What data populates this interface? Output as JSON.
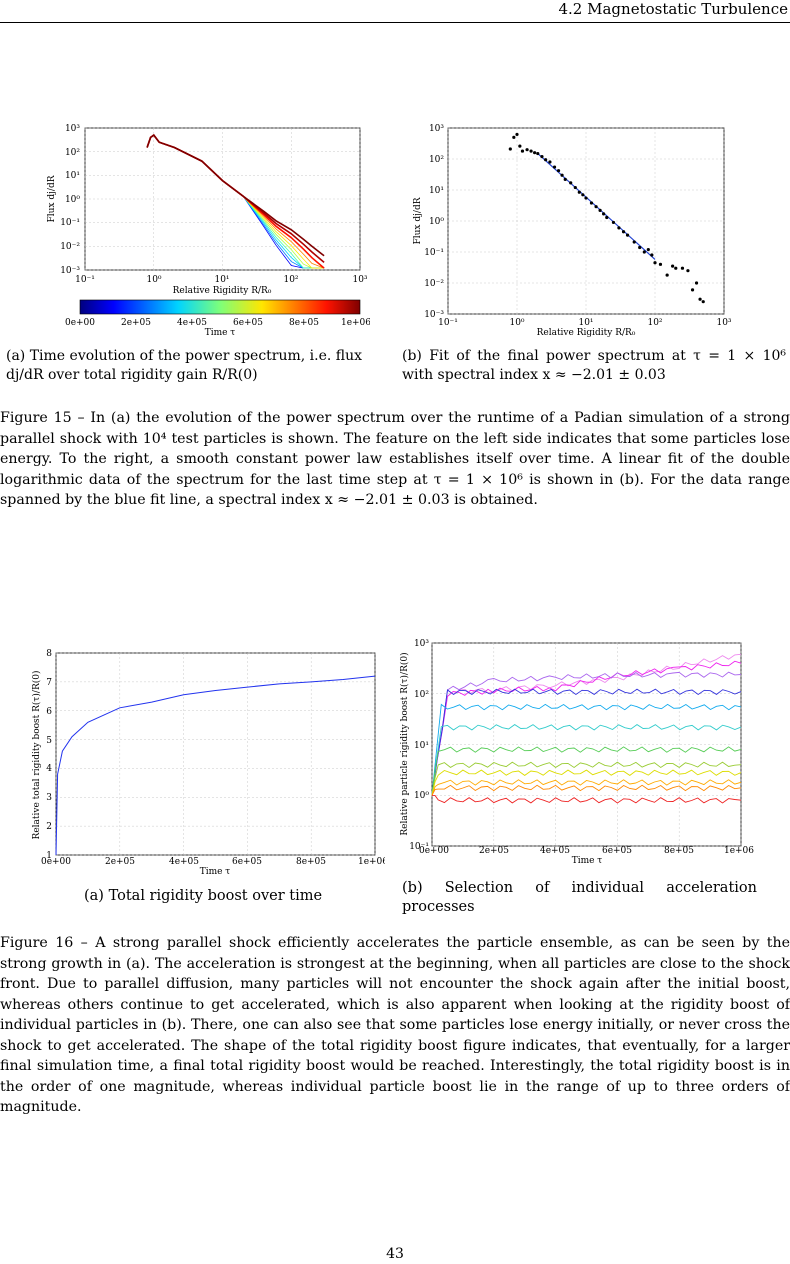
{
  "header": {
    "section": "4.2  Magnetostatic Turbulence"
  },
  "figure15": {
    "a": {
      "ylabel": "Flux dj/dR",
      "xlabel": "Relative Rigidity R/R₀",
      "yticks": [
        "10³",
        "10²",
        "10¹",
        "10⁰",
        "10⁻¹",
        "10⁻²",
        "10⁻³"
      ],
      "xticks": [
        "10⁻¹",
        "10⁰",
        "10¹",
        "10²",
        "10³"
      ],
      "colorbar_ticks": [
        "0e+00",
        "2e+05",
        "4e+05",
        "6e+05",
        "8e+05",
        "1e+06"
      ],
      "colorbar_label": "Time τ",
      "caption": "(a) Time evolution of the power spectrum, i.e. flux dj/dR over total rigidity gain R/R(0)"
    },
    "b": {
      "ylabel": "Flux dj/dR",
      "xlabel": "Relative Rigidity R/R₀",
      "yticks": [
        "10³",
        "10²",
        "10¹",
        "10⁰",
        "10⁻¹",
        "10⁻²",
        "10⁻³"
      ],
      "xticks": [
        "10⁻¹",
        "10⁰",
        "10¹",
        "10²",
        "10³"
      ],
      "caption": "(b) Fit of the final power spectrum at τ = 1 × 10⁶ with spectral index x ≈ −2.01 ± 0.03"
    },
    "caption": "Figure 15 – In (a) the evolution of the power spectrum over the runtime of a Padian simulation of a strong parallel shock with 10⁴ test particles is shown. The feature on the left side indicates that some particles lose energy. To the right, a smooth constant power law establishes itself over time. A linear fit of the double logarithmic data of the spectrum for the last time step at τ = 1 × 10⁶ is shown in (b). For the data range spanned by the blue fit line, a spectral index x ≈ −2.01 ± 0.03 is obtained."
  },
  "figure16": {
    "a": {
      "ylabel": "Relative total rigidity boost R(τ)/R(0)",
      "xlabel": "Time τ",
      "yticks": [
        "8",
        "7",
        "6",
        "5",
        "4",
        "3",
        "2",
        "1"
      ],
      "xticks": [
        "0e+00",
        "2e+05",
        "4e+05",
        "6e+05",
        "8e+05",
        "1e+06"
      ],
      "caption": "(a) Total rigidity boost over time"
    },
    "b": {
      "ylabel": "Relative particle rigidity boost R(τ)/R(0)",
      "xlabel": "Time τ",
      "yticks": [
        "10³",
        "10²",
        "10¹",
        "10⁰",
        "10⁻¹"
      ],
      "xticks": [
        "0e+00",
        "2e+05",
        "4e+05",
        "6e+05",
        "8e+05",
        "1e+06"
      ],
      "caption": "(b) Selection of individual acceleration processes"
    },
    "caption": "Figure 16 – A strong parallel shock efficiently accelerates the particle ensemble, as can be seen by the strong growth in (a). The acceleration is strongest at the beginning, when all particles are close to the shock front. Due to parallel diffusion, many particles will not encounter the shock again after the initial boost, whereas others continue to get accelerated, which is also apparent when looking at the rigidity boost of individual particles in (b). There, one can also see that some particles lose energy initially, or never cross the shock to get accelerated. The shape of the total rigidity boost figure indicates, that eventually, for a larger final simulation time, a final total rigidity boost would be reached. Interestingly, the total rigidity boost is in the order of one magnitude, whereas individual particle boost lie in the range of up to three orders of magnitude."
  },
  "page_number": "43",
  "chart_data": [
    {
      "type": "line",
      "xscale": "log",
      "yscale": "log",
      "xlim": [
        0.1,
        1000
      ],
      "ylim": [
        0.001,
        1000
      ],
      "xlabel": "Relative Rigidity R/R₀",
      "ylabel": "Flux dj/dR",
      "colorbar": {
        "label": "Time τ",
        "range": [
          0,
          1000000
        ]
      },
      "series": [
        {
          "x": [
            0.8,
            0.9,
            1.0,
            1.2,
            2,
            5,
            10,
            20,
            40,
            60,
            100,
            150,
            200,
            300
          ],
          "y": [
            150,
            400,
            500,
            250,
            150,
            40,
            6,
            1.3,
            0.3,
            0.12,
            0.05,
            0.02,
            0.01,
            0.004
          ]
        }
      ]
    },
    {
      "type": "scatter",
      "xscale": "log",
      "yscale": "log",
      "xlim": [
        0.1,
        1000
      ],
      "ylim": [
        0.001,
        1000
      ],
      "xlabel": "Relative Rigidity R/R₀",
      "ylabel": "Flux dj/dR",
      "points_x": [
        0.8,
        0.9,
        1.0,
        1.1,
        1.2,
        1.4,
        1.6,
        1.8,
        2.0,
        2.3,
        2.6,
        3.0,
        3.5,
        4,
        4.5,
        5,
        6,
        7,
        8,
        9,
        10,
        12,
        14,
        16,
        18,
        20,
        25,
        30,
        35,
        40,
        50,
        60,
        70,
        80,
        90,
        100,
        120,
        150,
        180,
        200,
        250,
        300,
        350,
        400,
        450,
        500
      ],
      "points_y": [
        210,
        500,
        620,
        260,
        180,
        200,
        180,
        160,
        150,
        120,
        95,
        80,
        55,
        42,
        30,
        22,
        17,
        12,
        8.5,
        7,
        5.5,
        3.8,
        2.9,
        2.2,
        1.7,
        1.3,
        0.9,
        0.6,
        0.45,
        0.35,
        0.21,
        0.14,
        0.1,
        0.12,
        0.08,
        0.045,
        0.04,
        0.018,
        0.035,
        0.03,
        0.03,
        0.025,
        0.006,
        0.01,
        0.003,
        0.0025
      ],
      "fit": {
        "x": [
          2,
          100
        ],
        "slope": -2.01,
        "error": 0.03
      }
    },
    {
      "type": "line",
      "xlim": [
        0,
        1000000
      ],
      "ylim": [
        1,
        8
      ],
      "xlabel": "Time τ",
      "ylabel": "Relative total rigidity boost R(τ)/R(0)",
      "series": [
        {
          "x": [
            0,
            5000,
            20000,
            50000,
            100000,
            200000,
            300000,
            400000,
            500000,
            600000,
            700000,
            800000,
            900000,
            1000000
          ],
          "y": [
            1,
            3.8,
            4.6,
            5.1,
            5.6,
            6.1,
            6.3,
            6.55,
            6.7,
            6.82,
            6.93,
            7.0,
            7.08,
            7.2
          ]
        }
      ]
    },
    {
      "type": "line",
      "yscale": "log",
      "xlim": [
        0,
        1000000
      ],
      "ylim": [
        0.1,
        1000
      ],
      "xlabel": "Time τ",
      "ylabel": "Relative particle rigidity boost R(τ)/R(0)",
      "series": [
        {
          "color": "#e8e",
          "x": [
            0,
            50000,
            200000,
            400000,
            600000,
            800000,
            1000000
          ],
          "y": [
            1,
            110,
            120,
            150,
            200,
            350,
            600
          ]
        },
        {
          "color": "#e2e",
          "x": [
            0,
            50000,
            200000,
            400000,
            600000,
            800000,
            1000000
          ],
          "y": [
            1,
            100,
            115,
            130,
            230,
            320,
            400
          ]
        },
        {
          "color": "#a6e",
          "x": [
            0,
            50000,
            200000,
            400000,
            600000,
            800000,
            1000000
          ],
          "y": [
            1,
            120,
            180,
            210,
            230,
            240,
            240
          ]
        },
        {
          "color": "#33d",
          "x": [
            0,
            50000,
            1000000
          ],
          "y": [
            1,
            110,
            110
          ]
        },
        {
          "color": "#1ae",
          "x": [
            0,
            30000,
            1000000
          ],
          "y": [
            1,
            55,
            55
          ]
        },
        {
          "color": "#3cc",
          "x": [
            0,
            30000,
            1000000
          ],
          "y": [
            1,
            22,
            22
          ]
        },
        {
          "color": "#5c5",
          "x": [
            0,
            20000,
            1000000
          ],
          "y": [
            1,
            8,
            8
          ]
        },
        {
          "color": "#9c3",
          "x": [
            0,
            20000,
            1000000
          ],
          "y": [
            1,
            4,
            4
          ]
        },
        {
          "color": "#dd0",
          "x": [
            0,
            20000,
            1000000
          ],
          "y": [
            1,
            2.8,
            2.8
          ]
        },
        {
          "color": "#fa0",
          "x": [
            0,
            20000,
            1000000
          ],
          "y": [
            1,
            1.8,
            1.8
          ]
        },
        {
          "color": "#f80",
          "x": [
            0,
            20000,
            1000000
          ],
          "y": [
            1,
            1.4,
            1.4
          ]
        },
        {
          "color": "#e22",
          "x": [
            0,
            20000,
            1000000
          ],
          "y": [
            1,
            0.8,
            0.8
          ]
        }
      ]
    }
  ]
}
